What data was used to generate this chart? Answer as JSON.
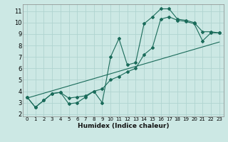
{
  "xlabel": "Humidex (Indice chaleur)",
  "background_color": "#cce8e4",
  "grid_color": "#b0d4d0",
  "line_color": "#1a6b5a",
  "xlim": [
    -0.5,
    23.5
  ],
  "ylim": [
    1.8,
    11.6
  ],
  "xticks": [
    0,
    1,
    2,
    3,
    4,
    5,
    6,
    7,
    8,
    9,
    10,
    11,
    12,
    13,
    14,
    15,
    16,
    17,
    18,
    19,
    20,
    21,
    22,
    23
  ],
  "yticks": [
    2,
    3,
    4,
    5,
    6,
    7,
    8,
    9,
    10,
    11
  ],
  "series1_x": [
    0,
    1,
    2,
    3,
    4,
    5,
    6,
    7,
    8,
    9,
    10,
    11,
    12,
    13,
    14,
    15,
    16,
    17,
    18,
    19,
    20,
    21,
    22,
    23
  ],
  "series1_y": [
    3.5,
    2.6,
    3.2,
    3.8,
    3.9,
    2.9,
    3.0,
    3.5,
    4.0,
    3.0,
    7.0,
    8.6,
    6.3,
    6.5,
    9.9,
    10.5,
    11.2,
    11.2,
    10.3,
    10.2,
    10.0,
    9.2,
    9.2,
    9.1
  ],
  "series2_x": [
    0,
    1,
    2,
    3,
    4,
    5,
    6,
    7,
    8,
    9,
    10,
    11,
    12,
    13,
    14,
    15,
    16,
    17,
    18,
    19,
    20,
    21,
    22,
    23
  ],
  "series2_y": [
    3.5,
    2.6,
    3.2,
    3.8,
    3.9,
    3.4,
    3.5,
    3.6,
    4.0,
    4.2,
    5.0,
    5.3,
    5.7,
    6.0,
    7.2,
    7.8,
    10.3,
    10.5,
    10.2,
    10.1,
    9.9,
    8.4,
    9.1,
    9.1
  ],
  "series3_x": [
    0,
    23
  ],
  "series3_y": [
    3.4,
    8.3
  ]
}
